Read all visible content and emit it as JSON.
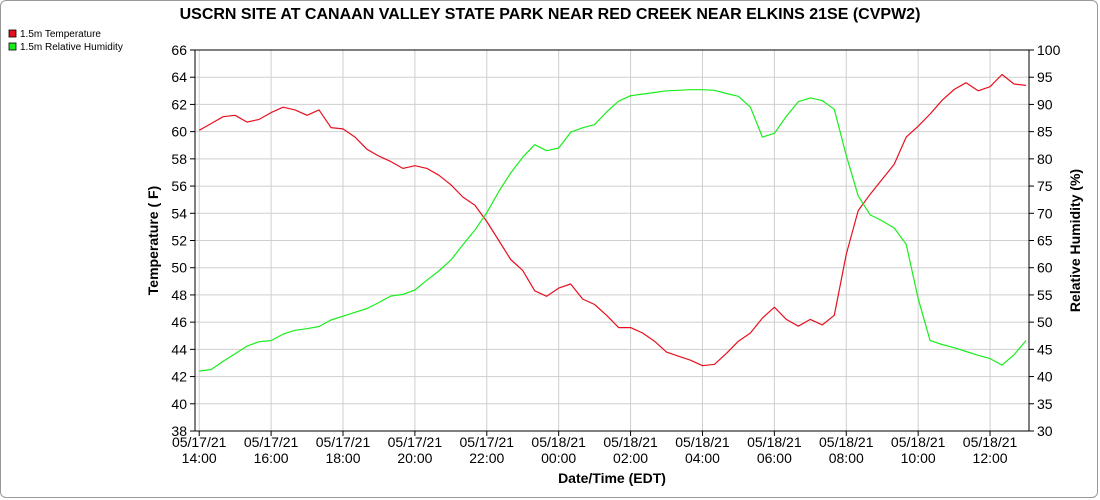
{
  "chart_data": {
    "type": "line",
    "title": "USCRN SITE AT CANAAN VALLEY STATE PARK NEAR RED CREEK NEAR ELKINS 21SE (CVPW2)",
    "xlabel": "Date/Time (EDT)",
    "ylabel_left": "Temperature ( F)",
    "ylabel_right": "Relative Humidity (%)",
    "x_ticks": [
      {
        "date": "05/17/21",
        "time": "14:00"
      },
      {
        "date": "05/17/21",
        "time": "16:00"
      },
      {
        "date": "05/17/21",
        "time": "18:00"
      },
      {
        "date": "05/17/21",
        "time": "20:00"
      },
      {
        "date": "05/17/21",
        "time": "22:00"
      },
      {
        "date": "05/18/21",
        "time": "00:00"
      },
      {
        "date": "05/18/21",
        "time": "02:00"
      },
      {
        "date": "05/18/21",
        "time": "04:00"
      },
      {
        "date": "05/18/21",
        "time": "06:00"
      },
      {
        "date": "05/18/21",
        "time": "08:00"
      },
      {
        "date": "05/18/21",
        "time": "10:00"
      },
      {
        "date": "05/18/21",
        "time": "12:00"
      }
    ],
    "x_range": [
      "05/17/21 13:53",
      "05/18/21 13:05"
    ],
    "y_left_range": [
      38,
      66
    ],
    "y_left_ticks": [
      "38",
      "40",
      "42",
      "44",
      "46",
      "48",
      "50",
      "52",
      "54",
      "56",
      "58",
      "60",
      "62",
      "64",
      "66"
    ],
    "y_right_range": [
      30,
      100
    ],
    "y_right_ticks": [
      "30",
      "35",
      "40",
      "45",
      "50",
      "55",
      "60",
      "65",
      "70",
      "75",
      "80",
      "85",
      "90",
      "95",
      "100"
    ],
    "grid": true,
    "legend_position": "top-left",
    "series": [
      {
        "name": "1.5m Temperature",
        "axis": "left",
        "color": "#e8101f",
        "points": [
          [
            "05/17/21 14:00",
            60.1
          ],
          [
            "05/17/21 14:20",
            60.6
          ],
          [
            "05/17/21 14:40",
            61.1
          ],
          [
            "05/17/21 15:00",
            61.2
          ],
          [
            "05/17/21 15:20",
            60.7
          ],
          [
            "05/17/21 15:40",
            60.9
          ],
          [
            "05/17/21 16:00",
            61.4
          ],
          [
            "05/17/21 16:20",
            61.8
          ],
          [
            "05/17/21 16:40",
            61.6
          ],
          [
            "05/17/21 17:00",
            61.2
          ],
          [
            "05/17/21 17:20",
            61.6
          ],
          [
            "05/17/21 17:40",
            60.3
          ],
          [
            "05/17/21 18:00",
            60.2
          ],
          [
            "05/17/21 18:20",
            59.6
          ],
          [
            "05/17/21 18:40",
            58.7
          ],
          [
            "05/17/21 19:00",
            58.2
          ],
          [
            "05/17/21 19:20",
            57.8
          ],
          [
            "05/17/21 19:40",
            57.3
          ],
          [
            "05/17/21 20:00",
            57.5
          ],
          [
            "05/17/21 20:20",
            57.3
          ],
          [
            "05/17/21 20:40",
            56.8
          ],
          [
            "05/17/21 21:00",
            56.1
          ],
          [
            "05/17/21 21:20",
            55.2
          ],
          [
            "05/17/21 21:40",
            54.6
          ],
          [
            "05/17/21 22:00",
            53.4
          ],
          [
            "05/17/21 22:20",
            52.0
          ],
          [
            "05/17/21 22:40",
            50.6
          ],
          [
            "05/17/21 23:00",
            49.8
          ],
          [
            "05/17/21 23:20",
            48.3
          ],
          [
            "05/17/21 23:40",
            47.9
          ],
          [
            "05/18/21 00:00",
            48.5
          ],
          [
            "05/18/21 00:20",
            48.8
          ],
          [
            "05/18/21 00:40",
            47.7
          ],
          [
            "05/18/21 01:00",
            47.3
          ],
          [
            "05/18/21 01:20",
            46.5
          ],
          [
            "05/18/21 01:40",
            45.6
          ],
          [
            "05/18/21 02:00",
            45.6
          ],
          [
            "05/18/21 02:20",
            45.2
          ],
          [
            "05/18/21 02:40",
            44.6
          ],
          [
            "05/18/21 03:00",
            43.8
          ],
          [
            "05/18/21 03:20",
            43.5
          ],
          [
            "05/18/21 03:40",
            43.2
          ],
          [
            "05/18/21 04:00",
            42.8
          ],
          [
            "05/18/21 04:20",
            42.9
          ],
          [
            "05/18/21 04:40",
            43.7
          ],
          [
            "05/18/21 05:00",
            44.6
          ],
          [
            "05/18/21 05:20",
            45.2
          ],
          [
            "05/18/21 05:40",
            46.3
          ],
          [
            "05/18/21 06:00",
            47.1
          ],
          [
            "05/18/21 06:20",
            46.2
          ],
          [
            "05/18/21 06:40",
            45.7
          ],
          [
            "05/18/21 07:00",
            46.2
          ],
          [
            "05/18/21 07:20",
            45.8
          ],
          [
            "05/18/21 07:40",
            46.5
          ],
          [
            "05/18/21 08:00",
            51.0
          ],
          [
            "05/18/21 08:20",
            54.2
          ],
          [
            "05/18/21 08:40",
            55.4
          ],
          [
            "05/18/21 09:00",
            56.5
          ],
          [
            "05/18/21 09:20",
            57.6
          ],
          [
            "05/18/21 09:40",
            59.6
          ],
          [
            "05/18/21 10:00",
            60.4
          ],
          [
            "05/18/21 10:20",
            61.3
          ],
          [
            "05/18/21 10:40",
            62.3
          ],
          [
            "05/18/21 11:00",
            63.1
          ],
          [
            "05/18/21 11:20",
            63.6
          ],
          [
            "05/18/21 11:40",
            63.0
          ],
          [
            "05/18/21 12:00",
            63.3
          ],
          [
            "05/18/21 12:20",
            64.2
          ],
          [
            "05/18/21 12:40",
            63.5
          ],
          [
            "05/18/21 13:00",
            63.4
          ]
        ]
      },
      {
        "name": "1.5m Relative Humidity",
        "axis": "right",
        "color": "#19ee1c",
        "points": [
          [
            "05/17/21 14:00",
            41.0
          ],
          [
            "05/17/21 14:20",
            41.3
          ],
          [
            "05/17/21 14:40",
            42.8
          ],
          [
            "05/17/21 15:00",
            44.2
          ],
          [
            "05/17/21 15:20",
            45.6
          ],
          [
            "05/17/21 15:40",
            46.4
          ],
          [
            "05/17/21 16:00",
            46.6
          ],
          [
            "05/17/21 16:20",
            47.8
          ],
          [
            "05/17/21 16:40",
            48.5
          ],
          [
            "05/17/21 17:00",
            48.8
          ],
          [
            "05/17/21 17:20",
            49.2
          ],
          [
            "05/17/21 17:40",
            50.4
          ],
          [
            "05/17/21 18:00",
            51.1
          ],
          [
            "05/17/21 18:20",
            51.8
          ],
          [
            "05/17/21 18:40",
            52.5
          ],
          [
            "05/17/21 19:00",
            53.6
          ],
          [
            "05/17/21 19:20",
            54.8
          ],
          [
            "05/17/21 19:40",
            55.1
          ],
          [
            "05/17/21 20:00",
            55.9
          ],
          [
            "05/17/21 20:20",
            57.7
          ],
          [
            "05/17/21 20:40",
            59.4
          ],
          [
            "05/17/21 21:00",
            61.4
          ],
          [
            "05/17/21 21:20",
            64.2
          ],
          [
            "05/17/21 21:40",
            66.9
          ],
          [
            "05/17/21 22:00",
            70.1
          ],
          [
            "05/17/21 22:20",
            74.0
          ],
          [
            "05/17/21 22:40",
            77.4
          ],
          [
            "05/17/21 23:00",
            80.3
          ],
          [
            "05/17/21 23:20",
            82.6
          ],
          [
            "05/17/21 23:40",
            81.5
          ],
          [
            "05/18/21 00:00",
            82.0
          ],
          [
            "05/18/21 00:20",
            84.9
          ],
          [
            "05/18/21 00:40",
            85.7
          ],
          [
            "05/18/21 01:00",
            86.3
          ],
          [
            "05/18/21 01:20",
            88.6
          ],
          [
            "05/18/21 01:40",
            90.6
          ],
          [
            "05/18/21 02:00",
            91.6
          ],
          [
            "05/18/21 02:20",
            91.9
          ],
          [
            "05/18/21 02:40",
            92.2
          ],
          [
            "05/18/21 03:00",
            92.5
          ],
          [
            "05/18/21 03:20",
            92.6
          ],
          [
            "05/18/21 03:40",
            92.7
          ],
          [
            "05/18/21 04:00",
            92.7
          ],
          [
            "05/18/21 04:20",
            92.6
          ],
          [
            "05/18/21 04:40",
            92.0
          ],
          [
            "05/18/21 05:00",
            91.5
          ],
          [
            "05/18/21 05:20",
            89.5
          ],
          [
            "05/18/21 05:40",
            84.0
          ],
          [
            "05/18/21 06:00",
            84.7
          ],
          [
            "05/18/21 06:20",
            87.8
          ],
          [
            "05/18/21 06:40",
            90.5
          ],
          [
            "05/18/21 07:00",
            91.2
          ],
          [
            "05/18/21 07:20",
            90.7
          ],
          [
            "05/18/21 07:40",
            89.1
          ],
          [
            "05/18/21 08:00",
            80.6
          ],
          [
            "05/18/21 08:20",
            73.2
          ],
          [
            "05/18/21 08:40",
            69.7
          ],
          [
            "05/18/21 09:00",
            68.6
          ],
          [
            "05/18/21 09:20",
            67.3
          ],
          [
            "05/18/21 09:40",
            64.3
          ],
          [
            "05/18/21 10:00",
            54.3
          ],
          [
            "05/18/21 10:20",
            46.6
          ],
          [
            "05/18/21 10:40",
            45.9
          ],
          [
            "05/18/21 11:00",
            45.3
          ],
          [
            "05/18/21 11:20",
            44.6
          ],
          [
            "05/18/21 11:40",
            43.9
          ],
          [
            "05/18/21 12:00",
            43.3
          ],
          [
            "05/18/21 12:20",
            42.1
          ],
          [
            "05/18/21 12:40",
            44.0
          ],
          [
            "05/18/21 13:00",
            46.6
          ]
        ]
      }
    ]
  }
}
